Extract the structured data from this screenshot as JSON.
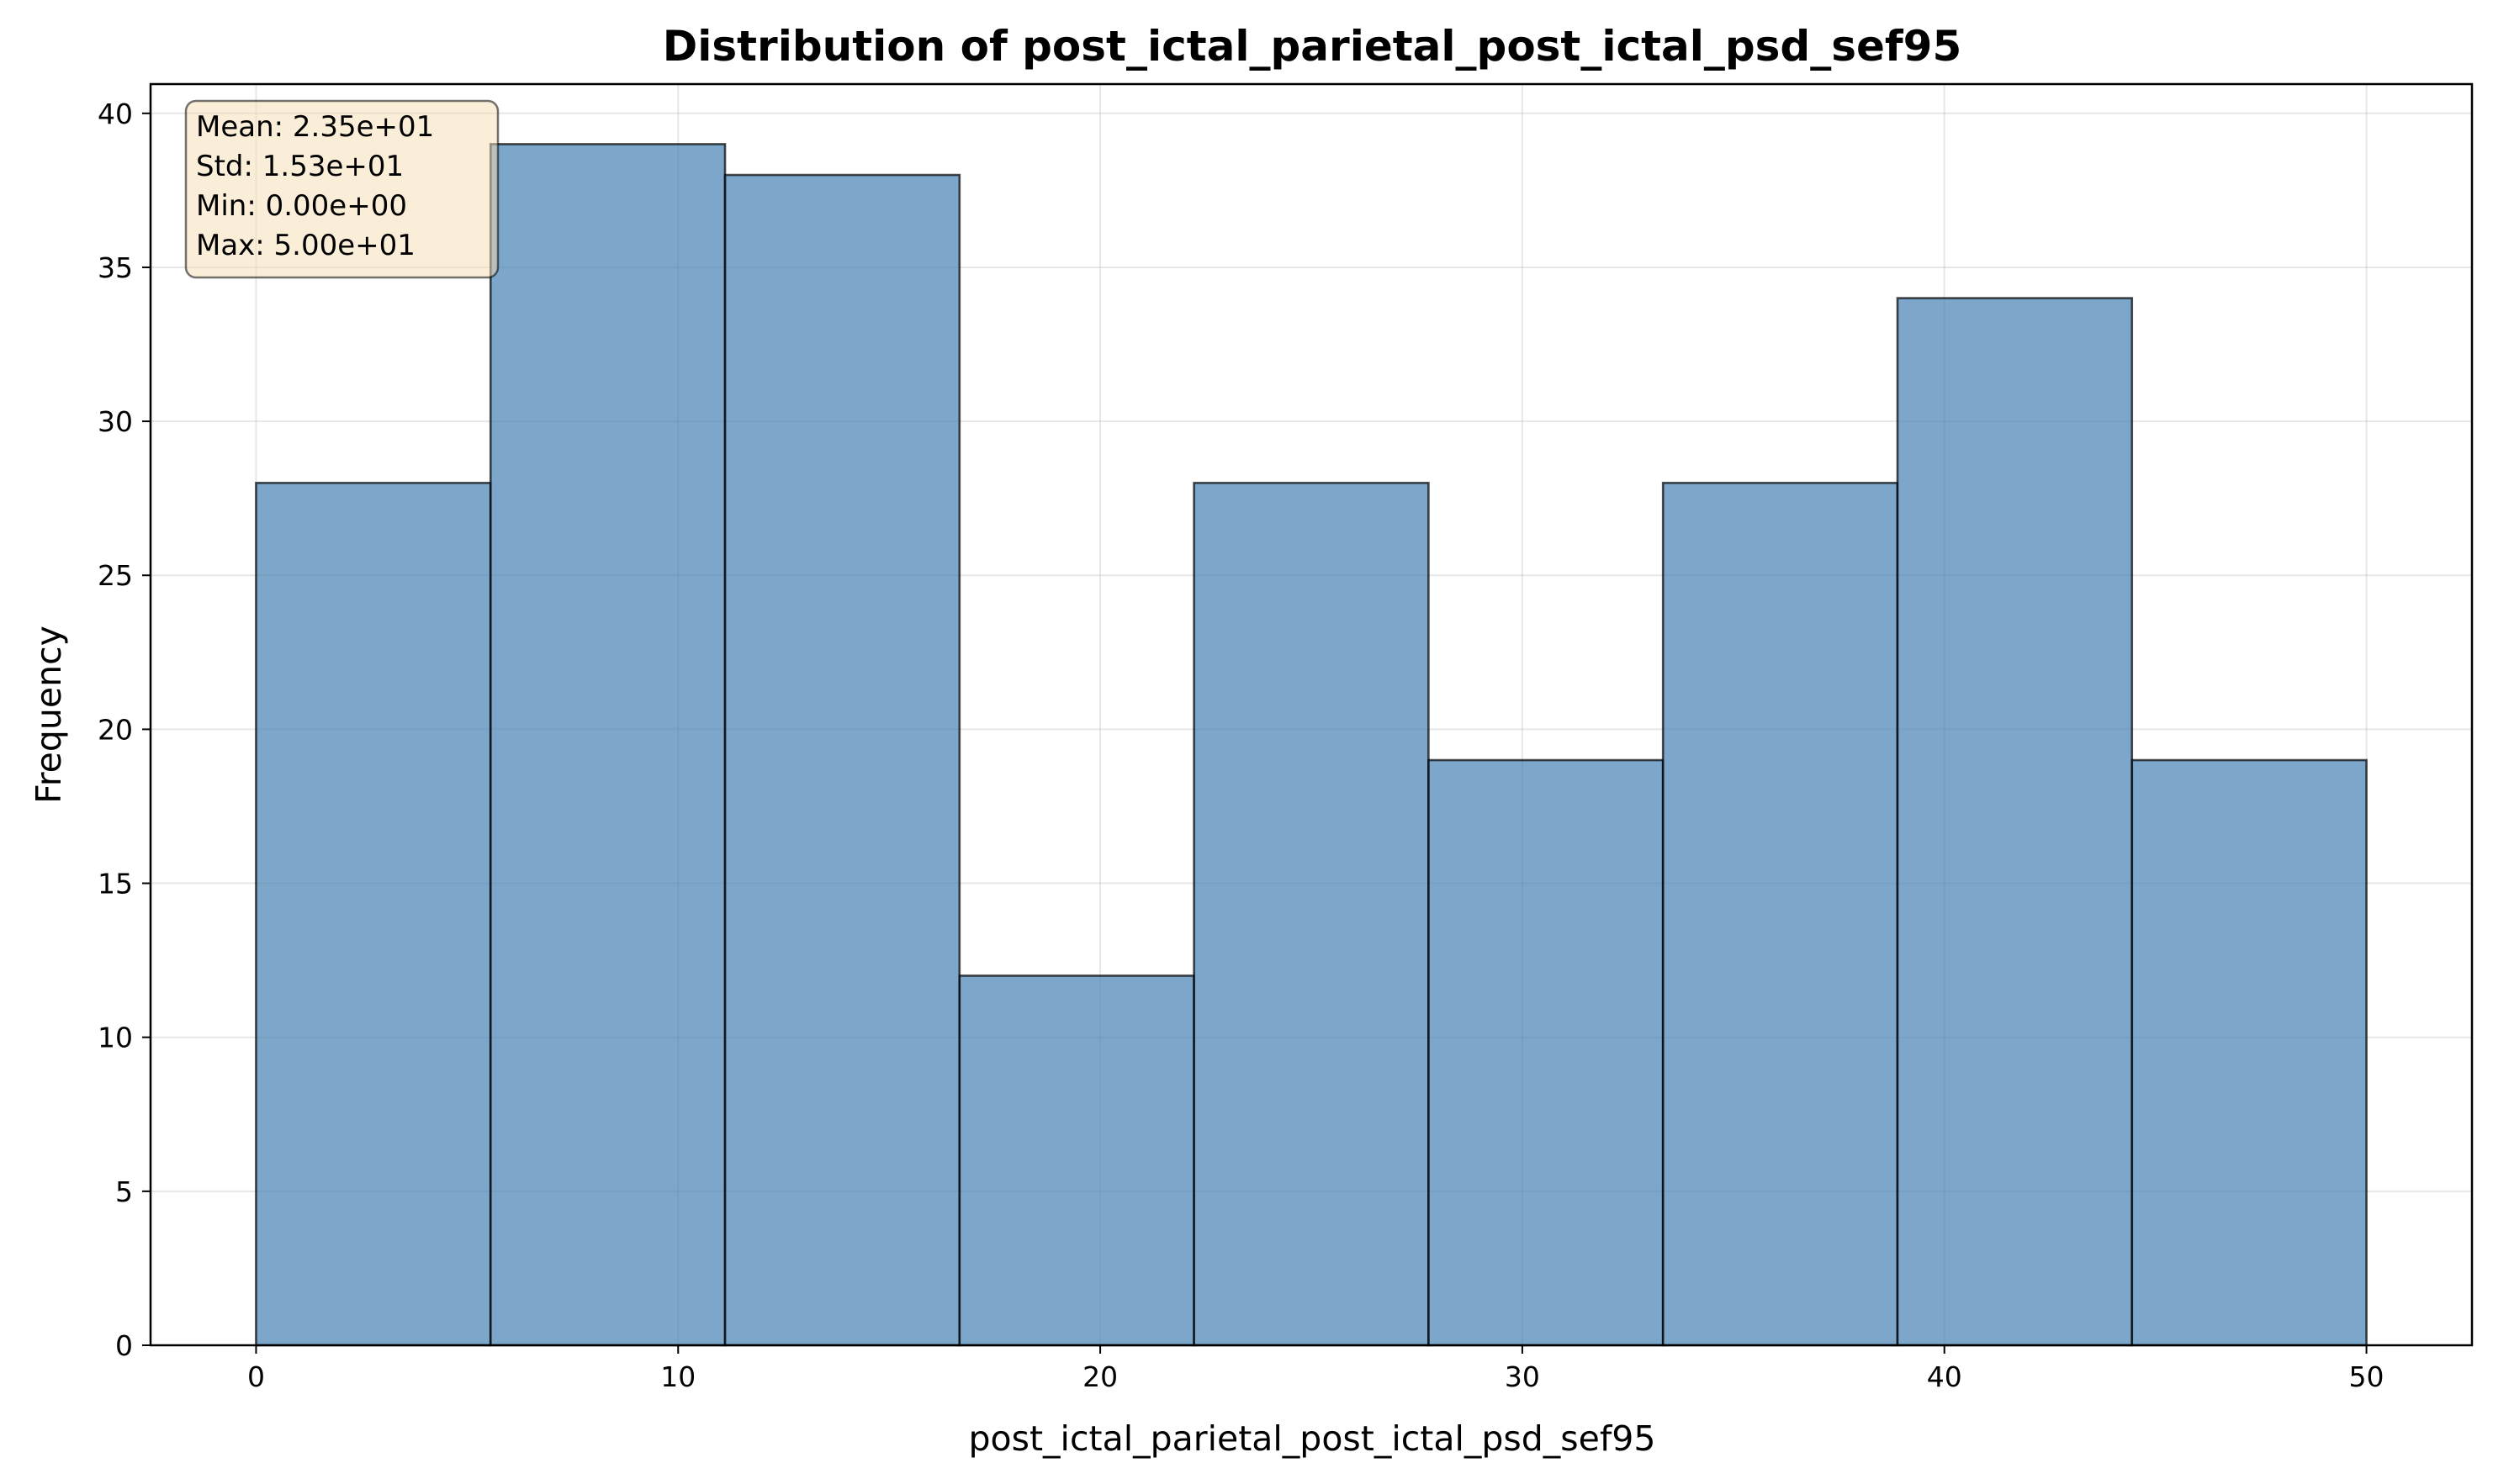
{
  "chart_data": {
    "type": "histogram",
    "title": "Distribution of post_ictal_parietal_post_ictal_psd_sef95",
    "xlabel": "post_ictal_parietal_post_ictal_psd_sef95",
    "ylabel": "Frequency",
    "bin_edges": [
      0,
      5.5556,
      11.1111,
      16.6667,
      22.2222,
      27.7778,
      33.3333,
      38.8889,
      44.4444,
      50
    ],
    "values": [
      28,
      39,
      38,
      12,
      28,
      19,
      28,
      34,
      19
    ],
    "xlim": [
      -2.5,
      52.5
    ],
    "ylim": [
      0,
      40.95
    ],
    "xticks": [
      0,
      10,
      20,
      30,
      40,
      50
    ],
    "yticks": [
      0,
      5,
      10,
      15,
      20,
      25,
      30,
      35,
      40
    ],
    "grid": true,
    "bar_color": "#4682b4",
    "stats_box": {
      "lines": [
        "Mean: 2.35e+01",
        "Std: 1.53e+01",
        "Min: 0.00e+00",
        "Max: 5.00e+01"
      ],
      "background": "#f5deb3",
      "placement": "top-left"
    }
  }
}
